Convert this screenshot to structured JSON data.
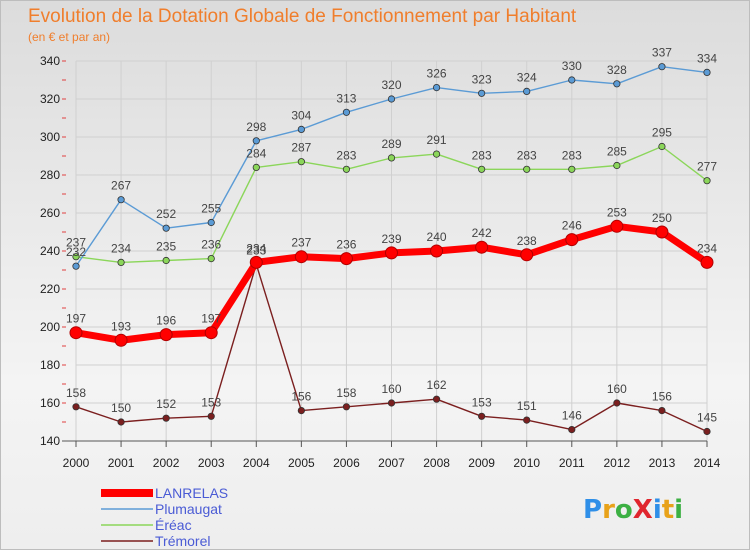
{
  "chart_data": {
    "type": "line",
    "title": "Evolution de la Dotation Globale de Fonctionnement par Habitant",
    "subtitle": "(en € et par an)",
    "x": [
      "2000",
      "2001",
      "2002",
      "2003",
      "2004",
      "2005",
      "2006",
      "2007",
      "2008",
      "2009",
      "2010",
      "2011",
      "2012",
      "2013",
      "2014"
    ],
    "ylim": [
      140,
      340
    ],
    "yticks": [
      "140",
      "160",
      "180",
      "200",
      "220",
      "240",
      "260",
      "280",
      "300",
      "320",
      "340"
    ],
    "grid": true,
    "legend_position": "bottom-left",
    "series": [
      {
        "name": "Trémorel",
        "color": "#7b1f1f",
        "values": [
          158,
          150,
          152,
          153,
          233,
          156,
          158,
          160,
          162,
          153,
          151,
          146,
          160,
          156,
          145
        ],
        "labels": [
          "158",
          "150",
          "152",
          "153",
          "233",
          "156",
          "158",
          "160",
          "162",
          "153",
          "151",
          "146",
          "160",
          "156",
          "145"
        ]
      },
      {
        "name": "Éréac",
        "color": "#8bd65a",
        "values": [
          237,
          234,
          235,
          236,
          284,
          287,
          283,
          289,
          291,
          283,
          283,
          283,
          285,
          295,
          277
        ],
        "labels": [
          "237",
          "234",
          "235",
          "236",
          "284",
          "287",
          "283",
          "289",
          "291",
          "283",
          "283",
          "283",
          "285",
          "295",
          "277"
        ]
      },
      {
        "name": "Plumaugat",
        "color": "#5b9bd5",
        "values": [
          232,
          267,
          252,
          255,
          298,
          304,
          313,
          320,
          326,
          323,
          324,
          330,
          328,
          337,
          334
        ],
        "labels": [
          "232",
          "267",
          "252",
          "255",
          "298",
          "304",
          "313",
          "320",
          "326",
          "323",
          "324",
          "330",
          "328",
          "337",
          "334"
        ]
      },
      {
        "name": "LANRELAS",
        "color": "#ff0000",
        "values": [
          197,
          193,
          196,
          197,
          234,
          237,
          236,
          239,
          240,
          242,
          238,
          246,
          253,
          250,
          234
        ],
        "labels": [
          "197",
          "193",
          "196",
          "197",
          "234",
          "237",
          "236",
          "239",
          "240",
          "242",
          "238",
          "246",
          "253",
          "250",
          "234"
        ]
      }
    ],
    "legend": [
      "LANRELAS",
      "Plumaugat",
      "Éréac",
      "Trémorel"
    ]
  },
  "brand": {
    "text": "ProXiti",
    "letters": [
      "P",
      "r",
      "o",
      "X",
      "i",
      "t",
      "i"
    ]
  }
}
